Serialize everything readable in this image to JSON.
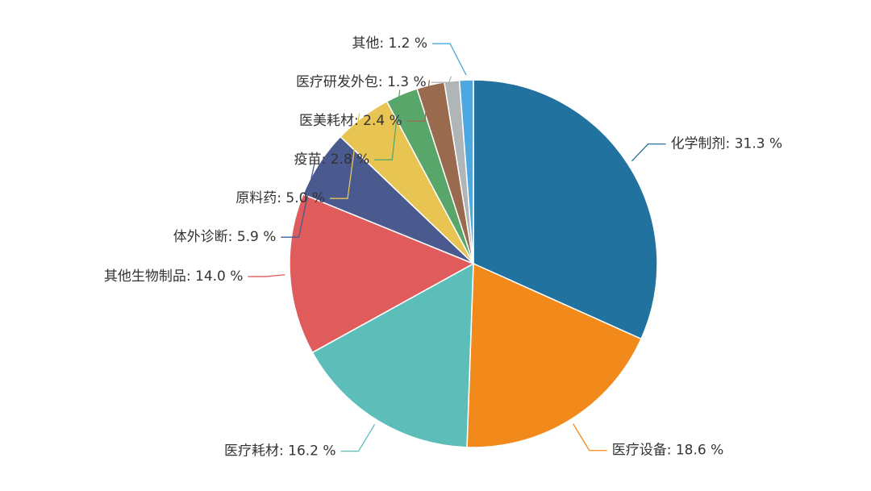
{
  "chart_data": {
    "type": "pie",
    "values": [
      31.3,
      18.6,
      16.2,
      14.0,
      5.9,
      5.0,
      2.8,
      2.4,
      1.3,
      1.2
    ],
    "value_labels": [
      "化学制剂: 31.3 %",
      "医疗设备: 18.6 %",
      "医疗耗材: 16.2 %",
      "其他生物制品: 14.0 %",
      "体外诊断: 5.9 %",
      "原料药: 5.0 %",
      "疫苗: 2.8 %",
      "医美耗材: 2.4 %",
      "医疗研发外包: 1.3 %",
      "其他: 1.2 %"
    ],
    "colors": [
      "#21729e",
      "#f28a1b",
      "#5cbdb9",
      "#e05c5c",
      "#4a5a8f",
      "#e8c552",
      "#59a66b",
      "#9a6a4f",
      "#b0b5b8",
      "#4ea8e0"
    ]
  }
}
